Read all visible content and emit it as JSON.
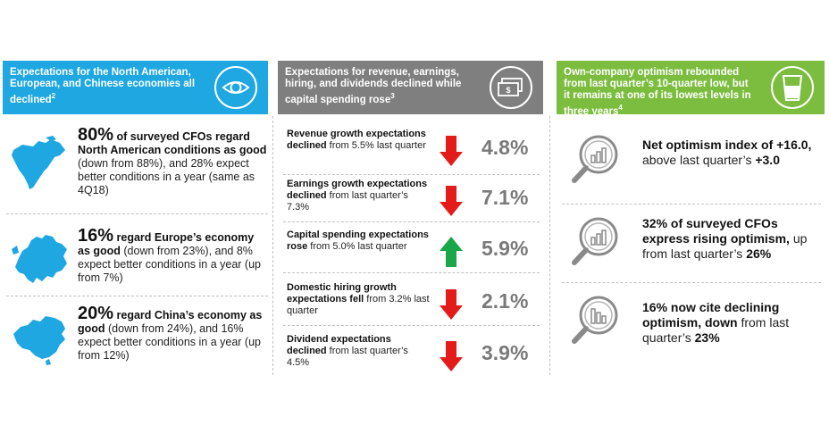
{
  "col1": {
    "header": "Expectations for the North American, European, and Chinese economies all declined",
    "header_sup": "2",
    "items": [
      {
        "pct": "80%",
        "bold1": " of surveyed CFOs regard North American conditions as good",
        "rest1": " (down from 88%), and 28%  expect better conditions in a year (same as 4Q18)"
      },
      {
        "pct": "16%",
        "bold1": " regard Europe’s economy as good",
        "rest1": " (down from 23%), and 8% expect better conditions in a year (up from 7%)"
      },
      {
        "pct": "20%",
        "bold1": " regard China’s economy as good",
        "rest1": " (down from 24%), and 16% expect better conditions in a year (up from 12%)"
      }
    ]
  },
  "col2": {
    "header": "Expectations for revenue, earnings, hiring, and dividends declined while capital spending rose",
    "header_sup": "3",
    "items": [
      {
        "bold": "Revenue growth expectations declined",
        "rest": " from 5.5% last quarter",
        "value": "4.8%",
        "direction": "down"
      },
      {
        "bold": "Earnings growth expectations declined",
        "rest": " from last quarter’s 7.3%",
        "value": "7.1%",
        "direction": "down"
      },
      {
        "bold": "Capital spending expectations rose",
        "rest": " from 5.0% last quarter",
        "value": "5.9%",
        "direction": "up"
      },
      {
        "bold": "Domestic hiring growth expectations fell",
        "rest": " from 3.2% last quarter",
        "value": "2.1%",
        "direction": "down"
      },
      {
        "bold": "Dividend expectations declined",
        "rest": " from last quarter’s 4.5%",
        "value": "3.9%",
        "direction": "down"
      }
    ]
  },
  "col3": {
    "header": "Own-company optimism rebounded from last quarter’s 10-quarter low, but it remains at one of its lowest levels in three years",
    "header_sup": "4",
    "items": [
      {
        "bold1": "Net optimism index of +16.0,",
        "rest1": " above last quarter’s ",
        "bold2": "+3.0"
      },
      {
        "bold1": "32% of surveyed CFOs express rising optimism,",
        "rest1": " up from last quarter’s ",
        "bold2": "26%"
      },
      {
        "bold1": "16% now cite declining optimism, down",
        "rest1": " from last quarter’s ",
        "bold2": "23%"
      }
    ]
  },
  "colors": {
    "blue": "#1ea7e0",
    "gray": "#7f7f7f",
    "green": "#7cbd3f",
    "arrow_down": "#e41b1b",
    "arrow_up": "#1aa64a",
    "pct": "#7a7a7a"
  },
  "icons": [
    "eye-icon",
    "money-icon",
    "glass-icon",
    "north-america-map",
    "europe-map",
    "china-map",
    "magnifier-chart-icon"
  ]
}
